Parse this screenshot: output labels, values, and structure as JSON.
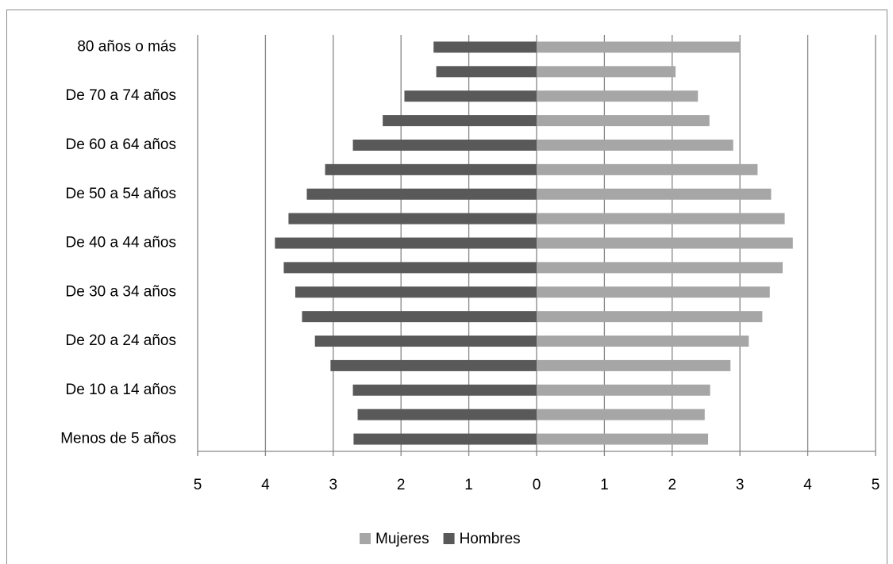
{
  "chart_data": {
    "type": "pyramid",
    "categories": [
      "Menos de 5 años",
      null,
      "De 10 a 14 años",
      null,
      "De 20 a 24 años",
      null,
      "De 30 a 34 años",
      null,
      "De 40 a 44 años",
      null,
      "De 50 a 54 años",
      null,
      "De 60 a 64 años",
      null,
      "De 70 a 74 años",
      null,
      "80 años o más"
    ],
    "series": [
      {
        "name": "Mujeres",
        "color": "#a6a6a6",
        "values": [
          2.53,
          2.48,
          2.56,
          2.86,
          3.13,
          3.33,
          3.44,
          3.63,
          3.78,
          3.66,
          3.46,
          3.26,
          2.9,
          2.55,
          2.38,
          2.05,
          3.0
        ]
      },
      {
        "name": "Hombres",
        "color": "#595959",
        "values": [
          -2.7,
          -2.64,
          -2.71,
          -3.04,
          -3.27,
          -3.46,
          -3.56,
          -3.73,
          -3.86,
          -3.66,
          -3.39,
          -3.12,
          -2.71,
          -2.27,
          -1.95,
          -1.48,
          -1.52
        ]
      }
    ],
    "xlim": [
      -5,
      5
    ],
    "xticks": [
      {
        "value": -5,
        "label": "5"
      },
      {
        "value": -4,
        "label": "4"
      },
      {
        "value": -3,
        "label": "3"
      },
      {
        "value": -2,
        "label": "2"
      },
      {
        "value": -1,
        "label": "1"
      },
      0,
      1,
      2,
      3,
      4,
      5
    ],
    "grid": true,
    "legend": "bottom"
  }
}
